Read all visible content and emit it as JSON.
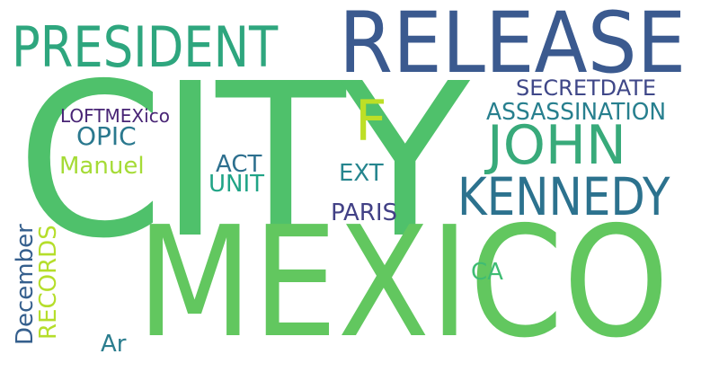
{
  "words": [
    {
      "id": "city",
      "text": "CITY",
      "color": "#4fc16b"
    },
    {
      "id": "mexico",
      "text": "MEXICO",
      "color": "#62c75f"
    },
    {
      "id": "release",
      "text": "RELEASE",
      "color": "#3b5a8f"
    },
    {
      "id": "president",
      "text": "PRESIDENT",
      "color": "#2ea67e"
    },
    {
      "id": "john",
      "text": "JOHN",
      "color": "#38aa7a"
    },
    {
      "id": "kennedy",
      "text": "KENNEDY",
      "color": "#2c728e"
    },
    {
      "id": "f",
      "text": "F",
      "color": "#bddf26"
    },
    {
      "id": "secretdate",
      "text": "SECRETDATE",
      "color": "#3f4788"
    },
    {
      "id": "assassination",
      "text": "ASSASSINATION",
      "color": "#277f8e"
    },
    {
      "id": "loftmexico",
      "text": "LOFTMEXico",
      "color": "#482475"
    },
    {
      "id": "opic",
      "text": "OPIC",
      "color": "#2a788e"
    },
    {
      "id": "manuel",
      "text": "Manuel",
      "color": "#a5db36"
    },
    {
      "id": "act",
      "text": "ACT",
      "color": "#2d6f8e"
    },
    {
      "id": "unit",
      "text": "UNIT",
      "color": "#20a486"
    },
    {
      "id": "ext",
      "text": "EXT",
      "color": "#25858e"
    },
    {
      "id": "paris",
      "text": "PARIS",
      "color": "#424186"
    },
    {
      "id": "december",
      "text": "December",
      "color": "#355f8d"
    },
    {
      "id": "records",
      "text": "RECORDS",
      "color": "#b5de2b"
    },
    {
      "id": "ca",
      "text": "CA",
      "color": "#3fbc73"
    },
    {
      "id": "ar",
      "text": "Ar",
      "color": "#2b7d8e"
    }
  ]
}
